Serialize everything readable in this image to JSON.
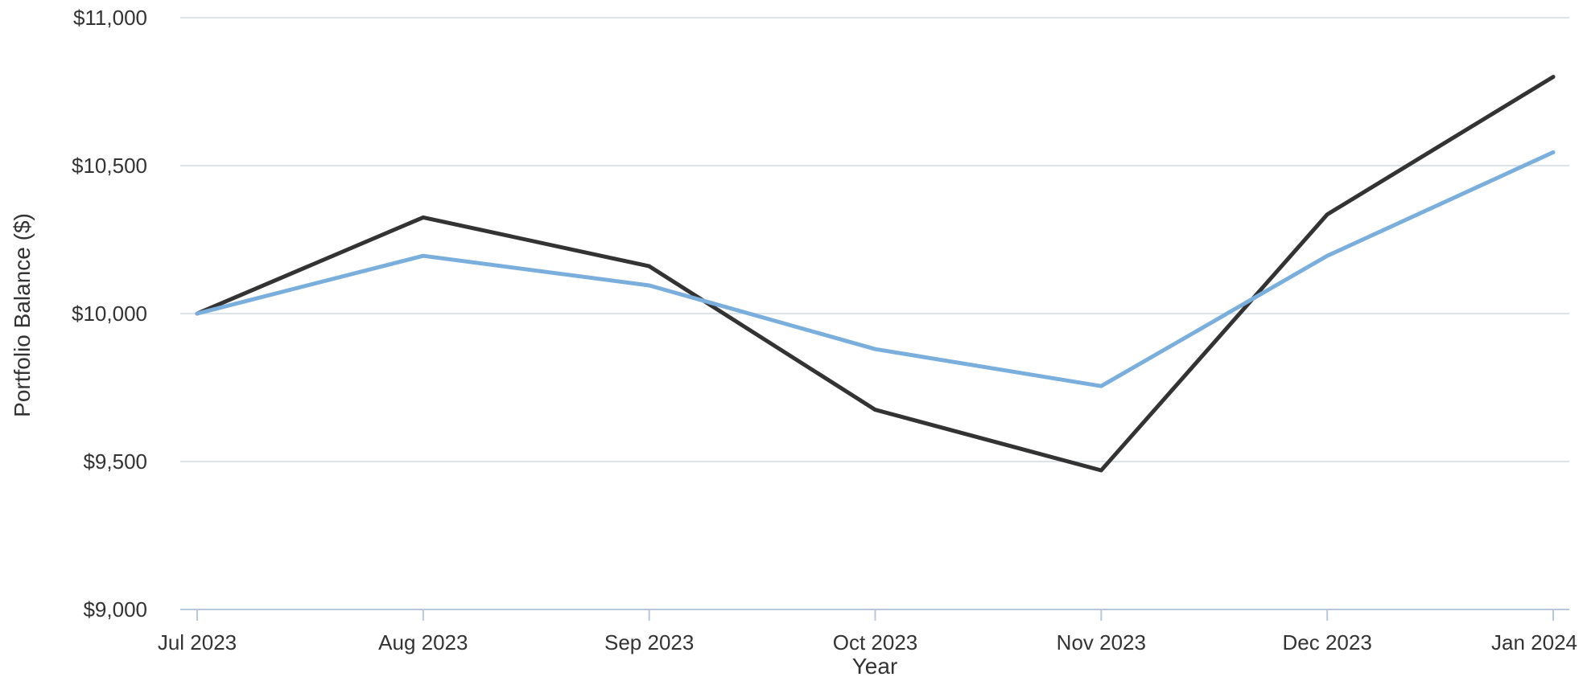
{
  "chart_data": {
    "type": "line",
    "xlabel": "Year",
    "ylabel": "Portfolio Balance ($)",
    "categories": [
      "Jul 2023",
      "Aug 2023",
      "Sep 2023",
      "Oct 2023",
      "Nov 2023",
      "Dec 2023",
      "Jan 2024"
    ],
    "ylim": [
      9000,
      11000
    ],
    "yticks": [
      9000,
      9500,
      10000,
      10500,
      11000
    ],
    "ytick_labels": [
      "$9,000",
      "$9,500",
      "$10,000",
      "$10,500",
      "$11,000"
    ],
    "grid": true,
    "legend": "none",
    "series": [
      {
        "color": "#333333",
        "values": [
          10000,
          10325,
          10160,
          9675,
          9470,
          10335,
          10800
        ]
      },
      {
        "color": "#7aaedc",
        "values": [
          10000,
          10195,
          10095,
          9880,
          9755,
          10195,
          10545
        ]
      }
    ]
  }
}
